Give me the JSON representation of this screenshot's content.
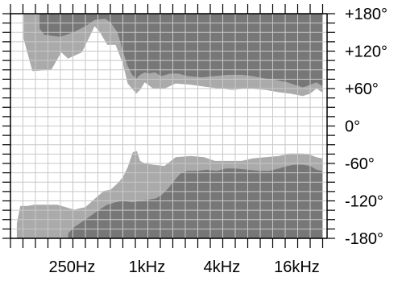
{
  "chart_data": {
    "type": "heatmap",
    "title": "",
    "xlabel": "",
    "ylabel": "",
    "x_scale": "log2",
    "x_unit": "Hz",
    "xlim": [
      80,
      28000
    ],
    "ylim": [
      -180,
      180
    ],
    "grid": true,
    "x_tick_labels": [
      {
        "value": 250,
        "label": "250Hz"
      },
      {
        "value": 1000,
        "label": "1kHz"
      },
      {
        "value": 4000,
        "label": "4kHz"
      },
      {
        "value": 16000,
        "label": "16kHz"
      }
    ],
    "y_tick_labels": [
      {
        "value": 180,
        "label": "+180°"
      },
      {
        "value": 120,
        "label": "+120°"
      },
      {
        "value": 60,
        "label": "+60°"
      },
      {
        "value": 0,
        "label": "0°"
      },
      {
        "value": -60,
        "label": "-60°"
      },
      {
        "value": -120,
        "label": "-120°"
      },
      {
        "value": -180,
        "label": "-180°"
      }
    ],
    "colors": {
      "background": "#ffffff",
      "grid": "#c8c8c8",
      "inner_region": "#aaaaaa",
      "outer_region": "#777777"
    },
    "regions": [
      {
        "name": "upper-inner-contour",
        "level": "inner",
        "boundary": [
          [
            102,
            180
          ],
          [
            102,
            140
          ],
          [
            120,
            88
          ],
          [
            170,
            90
          ],
          [
            205,
            118
          ],
          [
            232,
            108
          ],
          [
            300,
            118
          ],
          [
            380,
            160
          ],
          [
            420,
            150
          ],
          [
            480,
            130
          ],
          [
            560,
            130
          ],
          [
            640,
            100
          ],
          [
            700,
            68
          ],
          [
            820,
            52
          ],
          [
            880,
            58
          ],
          [
            960,
            70
          ],
          [
            1120,
            60
          ],
          [
            1380,
            60
          ],
          [
            1700,
            68
          ],
          [
            2240,
            66
          ],
          [
            3200,
            62
          ],
          [
            4800,
            58
          ],
          [
            6400,
            60
          ],
          [
            8960,
            58
          ],
          [
            11520,
            54
          ],
          [
            14100,
            52
          ],
          [
            17900,
            48
          ],
          [
            20500,
            52
          ],
          [
            23000,
            60
          ],
          [
            25600,
            54
          ],
          [
            25600,
            180
          ]
        ]
      },
      {
        "name": "upper-outer-contour",
        "level": "outer",
        "boundary": [
          [
            137,
            180
          ],
          [
            137,
            156
          ],
          [
            150,
            146
          ],
          [
            200,
            143
          ],
          [
            256,
            150
          ],
          [
            320,
            160
          ],
          [
            380,
            170
          ],
          [
            460,
            172
          ],
          [
            510,
            166
          ],
          [
            580,
            150
          ],
          [
            640,
            120
          ],
          [
            700,
            96
          ],
          [
            760,
            82
          ],
          [
            820,
            76
          ],
          [
            880,
            82
          ],
          [
            960,
            86
          ],
          [
            1030,
            84
          ],
          [
            1160,
            86
          ],
          [
            1300,
            80
          ],
          [
            1540,
            84
          ],
          [
            1790,
            84
          ],
          [
            2110,
            80
          ],
          [
            2750,
            78
          ],
          [
            3500,
            80
          ],
          [
            4480,
            82
          ],
          [
            5760,
            82
          ],
          [
            7040,
            80
          ],
          [
            8960,
            76
          ],
          [
            10880,
            74
          ],
          [
            13440,
            70
          ],
          [
            15360,
            66
          ],
          [
            17900,
            62
          ],
          [
            20500,
            66
          ],
          [
            23000,
            70
          ],
          [
            25600,
            64
          ],
          [
            25600,
            180
          ]
        ]
      },
      {
        "name": "lower-inner-contour",
        "level": "inner",
        "boundary": [
          [
            90,
            -180
          ],
          [
            90,
            -156
          ],
          [
            96,
            -128
          ],
          [
            110,
            -128
          ],
          [
            125,
            -126
          ],
          [
            190,
            -126
          ],
          [
            260,
            -134
          ],
          [
            320,
            -130
          ],
          [
            384,
            -116
          ],
          [
            450,
            -104
          ],
          [
            510,
            -102
          ],
          [
            580,
            -92
          ],
          [
            640,
            -82
          ],
          [
            700,
            -66
          ],
          [
            770,
            -42
          ],
          [
            830,
            -40
          ],
          [
            880,
            -56
          ],
          [
            960,
            -60
          ],
          [
            1130,
            -62
          ],
          [
            1380,
            -64
          ],
          [
            1700,
            -50
          ],
          [
            2240,
            -48
          ],
          [
            2880,
            -50
          ],
          [
            3520,
            -56
          ],
          [
            4480,
            -56
          ],
          [
            5760,
            -56
          ],
          [
            7040,
            -52
          ],
          [
            8960,
            -50
          ],
          [
            11520,
            -48
          ],
          [
            14080,
            -44
          ],
          [
            17920,
            -44
          ],
          [
            20480,
            -46
          ],
          [
            23000,
            -50
          ],
          [
            25600,
            -52
          ],
          [
            25600,
            -180
          ]
        ]
      },
      {
        "name": "lower-outer-contour",
        "level": "outer",
        "boundary": [
          [
            233,
            -180
          ],
          [
            233,
            -172
          ],
          [
            260,
            -162
          ],
          [
            320,
            -150
          ],
          [
            400,
            -136
          ],
          [
            480,
            -126
          ],
          [
            560,
            -122
          ],
          [
            640,
            -120
          ],
          [
            760,
            -122
          ],
          [
            900,
            -120
          ],
          [
            1040,
            -118
          ],
          [
            1180,
            -116
          ],
          [
            1320,
            -110
          ],
          [
            1480,
            -100
          ],
          [
            1680,
            -86
          ],
          [
            1860,
            -76
          ],
          [
            2100,
            -72
          ],
          [
            2560,
            -72
          ],
          [
            3000,
            -70
          ],
          [
            3640,
            -72
          ],
          [
            4300,
            -68
          ],
          [
            5120,
            -68
          ],
          [
            6400,
            -70
          ],
          [
            7920,
            -72
          ],
          [
            9600,
            -72
          ],
          [
            11520,
            -68
          ],
          [
            13440,
            -64
          ],
          [
            15360,
            -62
          ],
          [
            17900,
            -62
          ],
          [
            20500,
            -64
          ],
          [
            23000,
            -70
          ],
          [
            25600,
            -72
          ],
          [
            25600,
            -180
          ]
        ]
      }
    ]
  }
}
